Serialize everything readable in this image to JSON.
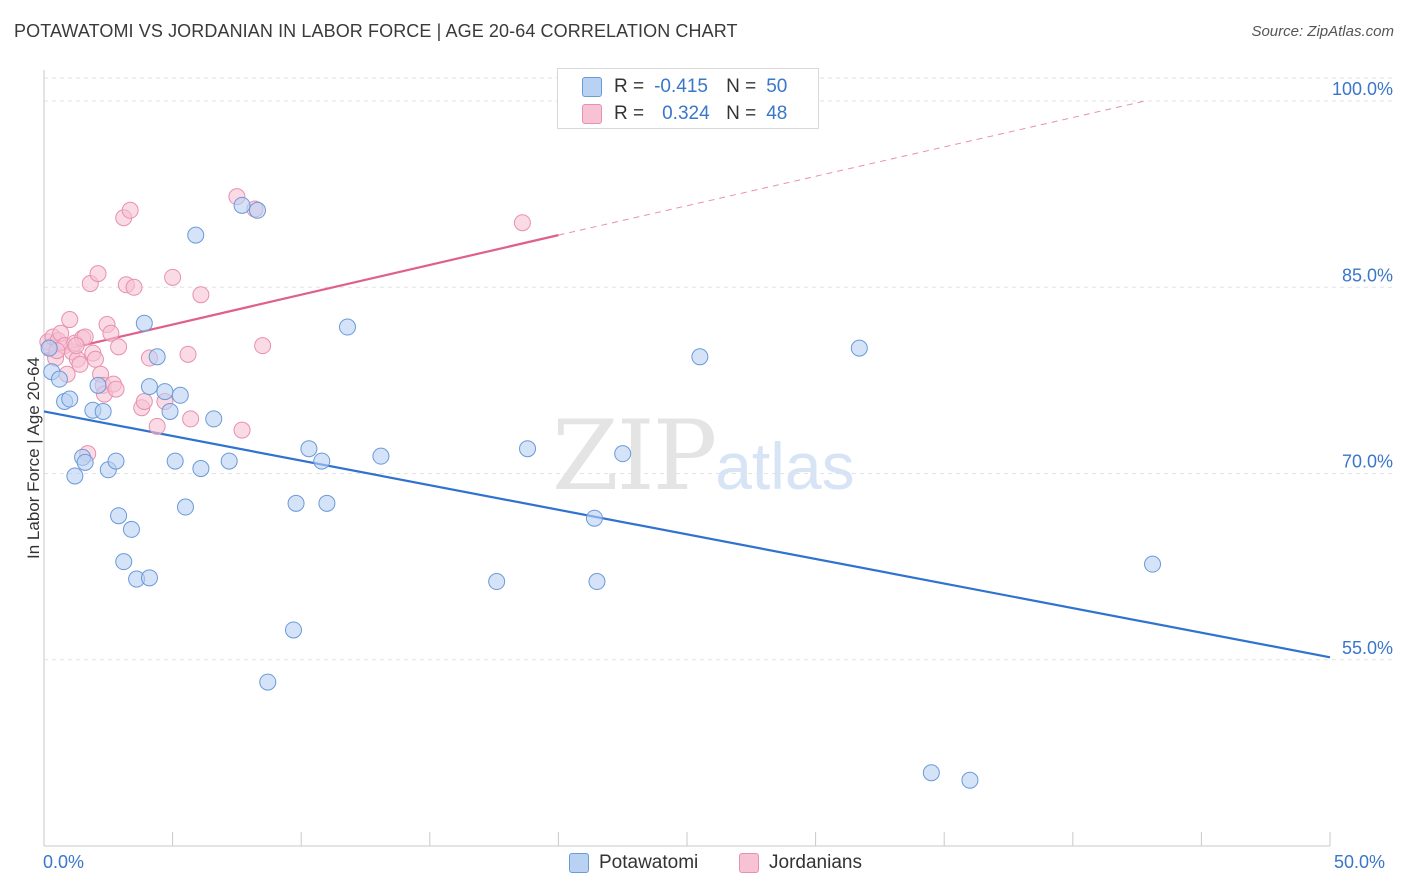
{
  "header": {
    "title": "POTAWATOMI VS JORDANIAN IN LABOR FORCE | AGE 20-64 CORRELATION CHART",
    "source": "Source: ZipAtlas.com"
  },
  "legend_top": {
    "row1": {
      "r_label": "R =",
      "r_value": "-0.415",
      "n_label": "N =",
      "n_value": "50"
    },
    "row2": {
      "r_label": "R =",
      "r_value": "0.324",
      "n_label": "N =",
      "n_value": "48"
    }
  },
  "watermark": {
    "zip": "ZIP",
    "atlas": "atlas"
  },
  "colors": {
    "blue_fill": "#b9d1f3",
    "blue_stroke": "#6a9ad8",
    "blue_line": "#2f72cf",
    "pink_fill": "#f7c2d3",
    "pink_stroke": "#e890ad",
    "pink_line": "#e0608b",
    "grid": "#e2e2e2",
    "axis_text": "#3a76c9"
  },
  "chart_data": {
    "type": "scatter",
    "title": "POTAWATOMI VS JORDANIAN IN LABOR FORCE | AGE 20-64 CORRELATION CHART",
    "xlabel": "",
    "ylabel": "In Labor Force | Age 20-64",
    "xlim": [
      0,
      50
    ],
    "ylim": [
      40,
      102.5
    ],
    "x_tick_labels": [
      "0.0%",
      "50.0%"
    ],
    "y_ticks": [
      55,
      70,
      85,
      100
    ],
    "y_tick_labels": [
      "55.0%",
      "70.0%",
      "85.0%",
      "100.0%"
    ],
    "legend": [
      "Potawatomi",
      "Jordanians"
    ],
    "series": [
      {
        "name": "Potawatomi",
        "r": -0.415,
        "n": 50,
        "trend": {
          "x": [
            0,
            50
          ],
          "y": [
            75.0,
            55.2
          ]
        },
        "points": [
          [
            0.3,
            78.2
          ],
          [
            0.6,
            77.6
          ],
          [
            0.8,
            75.8
          ],
          [
            1.0,
            76.0
          ],
          [
            1.2,
            69.8
          ],
          [
            1.5,
            71.3
          ],
          [
            1.6,
            70.9
          ],
          [
            1.9,
            75.1
          ],
          [
            2.1,
            77.1
          ],
          [
            2.3,
            75.0
          ],
          [
            2.5,
            70.3
          ],
          [
            2.8,
            71.0
          ],
          [
            2.9,
            66.6
          ],
          [
            3.1,
            62.9
          ],
          [
            3.4,
            65.5
          ],
          [
            3.6,
            61.5
          ],
          [
            3.9,
            82.1
          ],
          [
            4.1,
            61.6
          ],
          [
            4.1,
            77.0
          ],
          [
            4.4,
            79.4
          ],
          [
            4.7,
            76.6
          ],
          [
            4.9,
            75.0
          ],
          [
            5.1,
            71.0
          ],
          [
            5.3,
            76.3
          ],
          [
            5.5,
            67.3
          ],
          [
            5.9,
            89.2
          ],
          [
            6.1,
            70.4
          ],
          [
            6.6,
            74.4
          ],
          [
            7.2,
            71.0
          ],
          [
            7.7,
            91.6
          ],
          [
            8.3,
            91.2
          ],
          [
            8.7,
            53.2
          ],
          [
            9.7,
            57.4
          ],
          [
            9.8,
            67.6
          ],
          [
            10.3,
            72.0
          ],
          [
            10.8,
            71.0
          ],
          [
            11.0,
            67.6
          ],
          [
            11.8,
            81.8
          ],
          [
            13.1,
            71.4
          ],
          [
            17.6,
            61.3
          ],
          [
            18.8,
            72.0
          ],
          [
            21.4,
            66.4
          ],
          [
            21.5,
            61.3
          ],
          [
            22.5,
            71.6
          ],
          [
            25.5,
            79.4
          ],
          [
            31.7,
            80.1
          ],
          [
            34.5,
            45.9
          ],
          [
            36.0,
            45.3
          ],
          [
            43.1,
            62.7
          ],
          [
            0.2,
            80.1
          ]
        ]
      },
      {
        "name": "Jordanians",
        "r": 0.324,
        "n": 48,
        "trend": {
          "x": [
            0,
            20
          ],
          "y": [
            79.6,
            89.2
          ]
        },
        "trend_extension": {
          "x": [
            20,
            42.8
          ],
          "y": [
            89.2,
            100.0
          ]
        },
        "points": [
          [
            0.15,
            80.6
          ],
          [
            0.25,
            80.2
          ],
          [
            0.35,
            81.0
          ],
          [
            0.45,
            79.3
          ],
          [
            0.55,
            80.7
          ],
          [
            0.65,
            81.3
          ],
          [
            0.8,
            80.3
          ],
          [
            0.9,
            78.0
          ],
          [
            1.0,
            82.4
          ],
          [
            1.1,
            79.8
          ],
          [
            1.2,
            80.5
          ],
          [
            1.3,
            79.2
          ],
          [
            1.4,
            78.8
          ],
          [
            1.5,
            80.9
          ],
          [
            1.6,
            81.0
          ],
          [
            1.7,
            71.6
          ],
          [
            1.8,
            85.3
          ],
          [
            1.9,
            79.7
          ],
          [
            2.0,
            79.2
          ],
          [
            2.1,
            86.1
          ],
          [
            2.2,
            78.0
          ],
          [
            2.3,
            77.1
          ],
          [
            2.35,
            76.4
          ],
          [
            2.45,
            82.0
          ],
          [
            2.6,
            81.3
          ],
          [
            2.7,
            77.2
          ],
          [
            2.8,
            76.8
          ],
          [
            2.9,
            80.2
          ],
          [
            3.1,
            90.6
          ],
          [
            3.2,
            85.2
          ],
          [
            3.35,
            91.2
          ],
          [
            3.5,
            85.0
          ],
          [
            3.8,
            75.3
          ],
          [
            3.9,
            75.8
          ],
          [
            4.1,
            79.3
          ],
          [
            4.4,
            73.8
          ],
          [
            4.7,
            75.8
          ],
          [
            5.0,
            85.8
          ],
          [
            5.6,
            79.6
          ],
          [
            5.7,
            74.4
          ],
          [
            6.1,
            84.4
          ],
          [
            7.5,
            92.3
          ],
          [
            7.7,
            73.5
          ],
          [
            8.2,
            91.3
          ],
          [
            8.5,
            80.3
          ],
          [
            18.6,
            90.2
          ],
          [
            1.25,
            80.3
          ],
          [
            0.5,
            79.9
          ]
        ]
      }
    ]
  }
}
